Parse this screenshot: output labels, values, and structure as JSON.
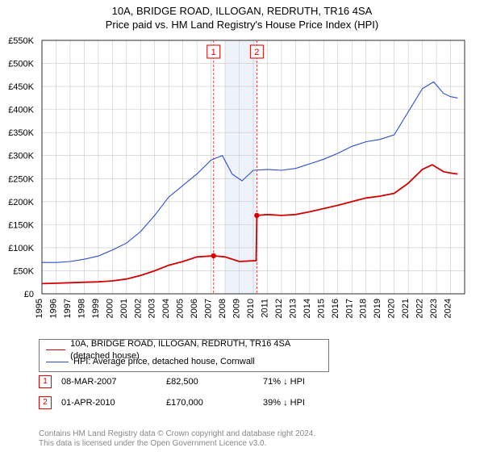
{
  "title_line1": "10A, BRIDGE ROAD, ILLOGAN, REDRUTH, TR16 4SA",
  "title_line2": "Price paid vs. HM Land Registry's House Price Index (HPI)",
  "chart": {
    "type": "line",
    "background_color": "#ffffff",
    "grid_color": "#c8c8c8",
    "x": {
      "domain_years": [
        1995,
        2025
      ],
      "ticks": [
        1995,
        1996,
        1997,
        1998,
        1999,
        2000,
        2001,
        2002,
        2003,
        2004,
        2005,
        2006,
        2007,
        2008,
        2009,
        2010,
        2011,
        2012,
        2013,
        2014,
        2015,
        2016,
        2017,
        2018,
        2019,
        2020,
        2021,
        2022,
        2023,
        2024
      ],
      "tick_label_fontsize": 11,
      "tick_label_rotate": -90
    },
    "y": {
      "domain": [
        0,
        550000
      ],
      "ticks": [
        0,
        50000,
        100000,
        150000,
        200000,
        250000,
        300000,
        350000,
        400000,
        450000,
        500000,
        550000
      ],
      "tick_labels": [
        "£0",
        "£50K",
        "£100K",
        "£150K",
        "£200K",
        "£250K",
        "£300K",
        "£350K",
        "£400K",
        "£450K",
        "£500K",
        "£550K"
      ],
      "tick_label_fontsize": 11
    },
    "band": {
      "from_year": 2008.0,
      "to_year": 2010.25,
      "fill": "#eef2fb"
    },
    "markers": [
      {
        "id": "1",
        "year": 2007.18,
        "value": 82500,
        "vline_color": "#e02020",
        "box_border": "#d00000",
        "box_text": "#d00000"
      },
      {
        "id": "2",
        "year": 2010.25,
        "value": 170000,
        "vline_color": "#e02020",
        "box_border": "#d00000",
        "box_text": "#d00000"
      }
    ],
    "series": [
      {
        "name": "price_paid",
        "label": "10A, BRIDGE ROAD, ILLOGAN, REDRUTH, TR16 4SA (detached house)",
        "color": "#d40000",
        "line_width": 1.8,
        "points_year_value": [
          [
            1995.0,
            22000
          ],
          [
            1996.0,
            23000
          ],
          [
            1997.0,
            24000
          ],
          [
            1998.0,
            25000
          ],
          [
            1999.0,
            26000
          ],
          [
            2000.0,
            28000
          ],
          [
            2001.0,
            32000
          ],
          [
            2002.0,
            40000
          ],
          [
            2003.0,
            50000
          ],
          [
            2004.0,
            62000
          ],
          [
            2005.0,
            70000
          ],
          [
            2006.0,
            80000
          ],
          [
            2007.0,
            82000
          ],
          [
            2007.18,
            82500
          ],
          [
            2008.0,
            80000
          ],
          [
            2009.0,
            70000
          ],
          [
            2010.2,
            72000
          ],
          [
            2010.25,
            170000
          ],
          [
            2011.0,
            172000
          ],
          [
            2012.0,
            170000
          ],
          [
            2013.0,
            172000
          ],
          [
            2014.0,
            178000
          ],
          [
            2015.0,
            185000
          ],
          [
            2016.0,
            192000
          ],
          [
            2017.0,
            200000
          ],
          [
            2018.0,
            208000
          ],
          [
            2019.0,
            212000
          ],
          [
            2020.0,
            218000
          ],
          [
            2021.0,
            240000
          ],
          [
            2022.0,
            270000
          ],
          [
            2022.7,
            280000
          ],
          [
            2023.5,
            265000
          ],
          [
            2024.0,
            262000
          ],
          [
            2024.5,
            260000
          ]
        ]
      },
      {
        "name": "hpi",
        "label": "HPI: Average price, detached house, Cornwall",
        "color": "#2a4fd0",
        "line_width": 1.1,
        "points_year_value": [
          [
            1995.0,
            68000
          ],
          [
            1996.0,
            68000
          ],
          [
            1997.0,
            70000
          ],
          [
            1998.0,
            75000
          ],
          [
            1999.0,
            82000
          ],
          [
            2000.0,
            95000
          ],
          [
            2001.0,
            110000
          ],
          [
            2002.0,
            135000
          ],
          [
            2003.0,
            170000
          ],
          [
            2004.0,
            210000
          ],
          [
            2005.0,
            235000
          ],
          [
            2006.0,
            260000
          ],
          [
            2007.0,
            290000
          ],
          [
            2007.8,
            300000
          ],
          [
            2008.5,
            260000
          ],
          [
            2009.2,
            245000
          ],
          [
            2010.0,
            268000
          ],
          [
            2011.0,
            270000
          ],
          [
            2012.0,
            268000
          ],
          [
            2013.0,
            272000
          ],
          [
            2014.0,
            282000
          ],
          [
            2015.0,
            292000
          ],
          [
            2016.0,
            305000
          ],
          [
            2017.0,
            320000
          ],
          [
            2018.0,
            330000
          ],
          [
            2019.0,
            335000
          ],
          [
            2020.0,
            345000
          ],
          [
            2021.0,
            395000
          ],
          [
            2022.0,
            445000
          ],
          [
            2022.8,
            460000
          ],
          [
            2023.5,
            435000
          ],
          [
            2024.0,
            428000
          ],
          [
            2024.5,
            425000
          ]
        ]
      }
    ]
  },
  "legend": {
    "series1_label": "10A, BRIDGE ROAD, ILLOGAN, REDRUTH, TR16 4SA (detached house)",
    "series2_label": "HPI: Average price, detached house, Cornwall"
  },
  "footnotes": [
    {
      "marker": "1",
      "date": "08-MAR-2007",
      "price": "£82,500",
      "delta": "71% ↓ HPI"
    },
    {
      "marker": "2",
      "date": "01-APR-2010",
      "price": "£170,000",
      "delta": "39% ↓ HPI"
    }
  ],
  "copyright_line1": "Contains HM Land Registry data © Crown copyright and database right 2024.",
  "copyright_line2": "This data is licensed under the Open Government Licence v3.0."
}
